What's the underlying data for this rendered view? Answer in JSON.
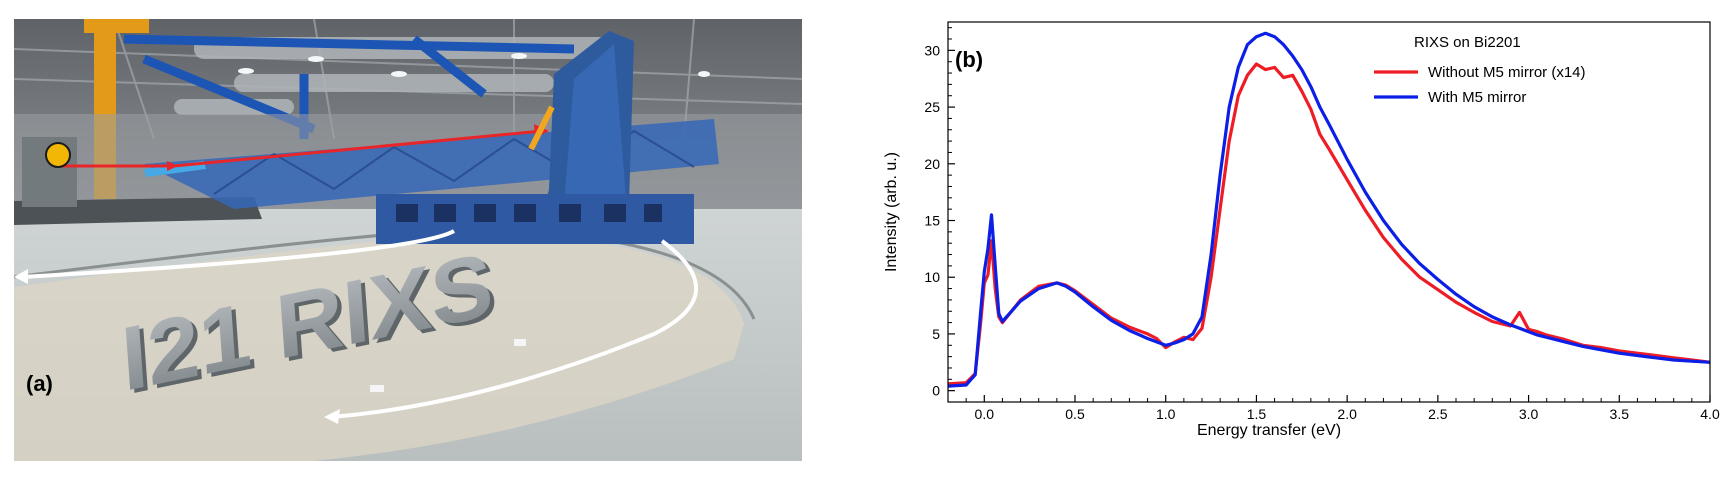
{
  "panel_a": {
    "label": "(a)",
    "photo_text": "I21 RIXS",
    "colors": {
      "beam": "#e8262a",
      "marker": "#f2b705",
      "arrow": "#ffffff",
      "frame": "#2e5a9e"
    }
  },
  "panel_b": {
    "label": "(b)"
  },
  "chart_data": {
    "type": "line",
    "title": "",
    "legend_title": "RIXS on Bi2201",
    "legend_position": "top-right",
    "xlabel": "Energy transfer (eV)",
    "ylabel": "Intensity (arb. u.)",
    "xlim": [
      -0.2,
      4.0
    ],
    "ylim": [
      -1,
      32.5
    ],
    "xticks": [
      "0.0",
      "0.5",
      "1.0",
      "1.5",
      "2.0",
      "2.5",
      "3.0",
      "3.5",
      "4.0"
    ],
    "yticks": [
      "0",
      "5",
      "10",
      "15",
      "20",
      "25",
      "30"
    ],
    "grid": false,
    "series": [
      {
        "name": "Without M5 mirror (x14)",
        "color": "#ee1c25",
        "x": [
          -0.2,
          -0.1,
          -0.05,
          -0.02,
          0.0,
          0.02,
          0.04,
          0.06,
          0.08,
          0.1,
          0.15,
          0.2,
          0.3,
          0.4,
          0.45,
          0.5,
          0.6,
          0.7,
          0.8,
          0.9,
          0.95,
          1.0,
          1.05,
          1.1,
          1.15,
          1.2,
          1.25,
          1.3,
          1.35,
          1.4,
          1.45,
          1.5,
          1.55,
          1.6,
          1.65,
          1.7,
          1.75,
          1.8,
          1.85,
          1.9,
          2.0,
          2.1,
          2.2,
          2.3,
          2.4,
          2.5,
          2.6,
          2.7,
          2.8,
          2.9,
          2.95,
          3.0,
          3.05,
          3.1,
          3.2,
          3.3,
          3.4,
          3.5,
          3.6,
          3.7,
          3.8,
          3.9,
          4.0
        ],
        "y": [
          0.6,
          0.7,
          1.5,
          6.0,
          9.5,
          10.2,
          13.2,
          9.0,
          6.5,
          6.0,
          7.0,
          8.0,
          9.2,
          9.5,
          9.3,
          8.8,
          7.6,
          6.4,
          5.6,
          5.0,
          4.6,
          3.8,
          4.3,
          4.7,
          4.5,
          5.5,
          10.0,
          16.0,
          22.0,
          26.0,
          27.8,
          28.8,
          28.3,
          28.5,
          27.6,
          27.8,
          26.4,
          24.8,
          22.6,
          21.3,
          18.6,
          15.9,
          13.5,
          11.6,
          10.0,
          8.9,
          7.8,
          6.9,
          6.1,
          5.7,
          6.9,
          5.4,
          5.2,
          4.9,
          4.5,
          4.0,
          3.8,
          3.5,
          3.3,
          3.1,
          2.9,
          2.7,
          2.5
        ]
      },
      {
        "name": "With M5 mirror",
        "color": "#0b1fe6",
        "x": [
          -0.2,
          -0.1,
          -0.05,
          -0.02,
          0.0,
          0.02,
          0.04,
          0.06,
          0.08,
          0.1,
          0.15,
          0.2,
          0.3,
          0.4,
          0.45,
          0.5,
          0.6,
          0.7,
          0.8,
          0.9,
          0.95,
          1.0,
          1.05,
          1.1,
          1.15,
          1.2,
          1.25,
          1.3,
          1.35,
          1.4,
          1.45,
          1.5,
          1.55,
          1.6,
          1.65,
          1.7,
          1.75,
          1.8,
          1.85,
          1.9,
          2.0,
          2.1,
          2.2,
          2.3,
          2.4,
          2.5,
          2.6,
          2.7,
          2.8,
          2.9,
          2.95,
          3.0,
          3.05,
          3.1,
          3.2,
          3.3,
          3.4,
          3.5,
          3.6,
          3.7,
          3.8,
          3.9,
          4.0
        ],
        "y": [
          0.4,
          0.5,
          1.4,
          7.0,
          10.5,
          12.5,
          15.5,
          11.0,
          6.8,
          6.1,
          7.0,
          7.9,
          9.0,
          9.5,
          9.2,
          8.7,
          7.4,
          6.2,
          5.3,
          4.6,
          4.3,
          4.0,
          4.2,
          4.5,
          5.0,
          6.5,
          12.0,
          19.0,
          25.0,
          28.5,
          30.5,
          31.2,
          31.5,
          31.2,
          30.5,
          29.5,
          28.3,
          26.8,
          25.0,
          23.5,
          20.4,
          17.5,
          15.0,
          12.9,
          11.2,
          9.8,
          8.5,
          7.4,
          6.5,
          5.8,
          5.5,
          5.2,
          4.9,
          4.7,
          4.3,
          3.9,
          3.6,
          3.3,
          3.1,
          2.9,
          2.7,
          2.6,
          2.5
        ]
      }
    ]
  }
}
